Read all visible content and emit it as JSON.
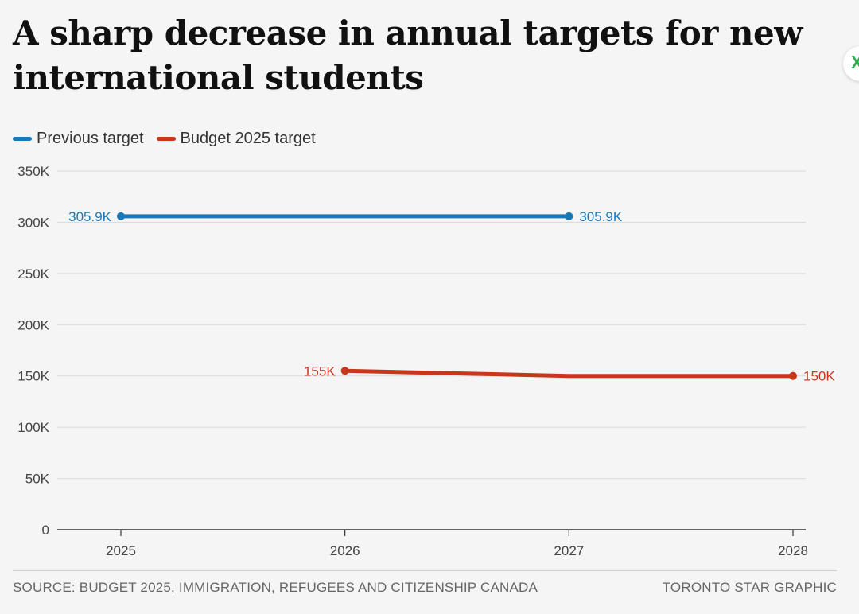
{
  "title": "A sharp decrease in annual targets for new international students",
  "legend": [
    {
      "label": "Previous target",
      "color": "#1a78b8"
    },
    {
      "label": "Budget 2025 target",
      "color": "#c8361b"
    }
  ],
  "footer": {
    "source": "SOURCE: BUDGET 2025, IMMIGRATION, REFUGEES AND CITIZENSHIP CANADA",
    "credit": "TORONTO STAR GRAPHIC"
  },
  "side_icon": {
    "glyph": "X",
    "icon": "x-mark-icon"
  },
  "chart_data": {
    "type": "line",
    "title": "A sharp decrease in annual targets for new international students",
    "xlabel": "",
    "ylabel": "",
    "categories": [
      "2025",
      "2026",
      "2027",
      "2028"
    ],
    "ylim": [
      0,
      350000
    ],
    "yticks": [
      0,
      50000,
      100000,
      150000,
      200000,
      250000,
      300000,
      350000
    ],
    "ytick_labels": [
      "0",
      "50K",
      "100K",
      "150K",
      "200K",
      "250K",
      "300K",
      "350K"
    ],
    "grid": true,
    "legend_position": "top-left",
    "series": [
      {
        "name": "Previous target",
        "color": "#1a78b8",
        "x": [
          "2025",
          "2027"
        ],
        "values": [
          305900,
          305900
        ],
        "labels": [
          "305.9K",
          "305.9K"
        ],
        "endpoint_labels": true
      },
      {
        "name": "Budget 2025 target",
        "color": "#c8361b",
        "x": [
          "2026",
          "2027",
          "2028"
        ],
        "values": [
          155000,
          150000,
          150000
        ],
        "labels": [
          "155K",
          null,
          "150K"
        ],
        "endpoint_labels": true
      }
    ]
  }
}
